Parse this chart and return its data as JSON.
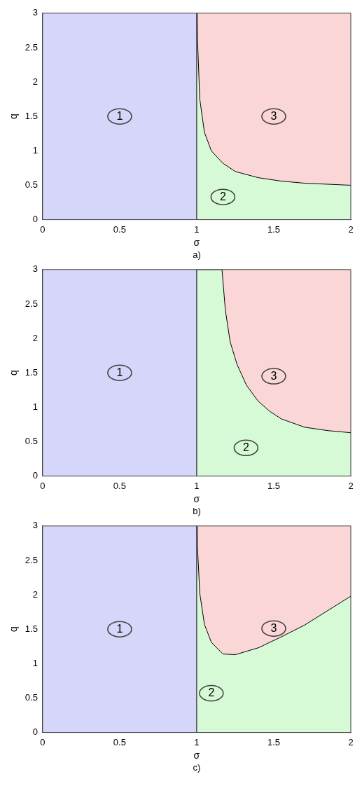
{
  "chart_data": [
    {
      "type": "area",
      "stacked": true,
      "xlabel": "σ",
      "ylabel": "q",
      "xlim": [
        0,
        2
      ],
      "xticks": [
        0,
        0.5,
        1,
        1.5,
        2
      ],
      "ylim": [
        0,
        3
      ],
      "yticks": [
        0,
        0.5,
        1,
        1.5,
        2,
        2.5,
        3
      ],
      "x": [
        1.003,
        1.005,
        1.02,
        1.05,
        1.095,
        1.17,
        1.25,
        1.4,
        1.55,
        1.7,
        2.0
      ],
      "series": [
        {
          "color": "#d6fad6",
          "values": [
            3,
            2.63,
            1.75,
            1.27,
            1.0,
            0.82,
            0.7,
            0.61,
            0.56,
            0.53,
            0.5
          ]
        },
        {
          "color": "#fad6d6",
          "values": [
            0,
            0.37,
            1.25,
            1.73,
            2.0,
            2.18,
            2.3,
            2.39,
            2.44,
            2.47,
            2.5
          ]
        }
      ],
      "bands": [
        {
          "axis": "x",
          "from": 0,
          "to": 1,
          "color": "#d6d6fa"
        }
      ],
      "ref_lines": [
        {
          "axis": "x",
          "value": 1,
          "color": "#000000"
        }
      ],
      "annotations": [
        {
          "text": "1",
          "x": 0.5,
          "y": 1.5
        },
        {
          "text": "2",
          "x": 1.17,
          "y": 0.33
        },
        {
          "text": "3",
          "x": 1.5,
          "y": 1.5
        },
        "a)"
      ]
    },
    {
      "type": "area",
      "stacked": true,
      "xlabel": "σ",
      "ylabel": "q",
      "xlim": [
        0,
        2
      ],
      "xticks": [
        0,
        0.5,
        1,
        1.5,
        2
      ],
      "ylim": [
        0,
        3
      ],
      "yticks": [
        0,
        0.5,
        1,
        1.5,
        2,
        2.5,
        3
      ],
      "x": [
        1.0,
        1.164,
        1.186,
        1.217,
        1.262,
        1.323,
        1.398,
        1.474,
        1.55,
        1.7,
        1.853,
        2.0
      ],
      "series": [
        {
          "color": "#d6fad6",
          "values": [
            3,
            3,
            2.41,
            1.95,
            1.62,
            1.32,
            1.09,
            0.94,
            0.83,
            0.71,
            0.66,
            0.63
          ]
        },
        {
          "color": "#fad6d6",
          "values": [
            0,
            0,
            0.59,
            1.05,
            1.38,
            1.68,
            1.91,
            2.06,
            2.17,
            2.29,
            2.34,
            2.37
          ]
        }
      ],
      "bands": [
        {
          "axis": "x",
          "from": 0,
          "to": 1,
          "color": "#d6d6fa"
        }
      ],
      "ref_lines": [
        {
          "axis": "x",
          "value": 1,
          "color": "#000000"
        }
      ],
      "annotations": [
        {
          "text": "1",
          "x": 0.5,
          "y": 1.5
        },
        {
          "text": "2",
          "x": 1.32,
          "y": 0.41
        },
        {
          "text": "3",
          "x": 1.5,
          "y": 1.45
        },
        "b)"
      ]
    },
    {
      "type": "area",
      "stacked": true,
      "xlabel": "σ",
      "ylabel": "q",
      "xlim": [
        0,
        2
      ],
      "xticks": [
        0,
        0.5,
        1,
        1.5,
        2
      ],
      "ylim": [
        0,
        3
      ],
      "yticks": [
        0,
        0.5,
        1,
        1.5,
        2,
        2.5,
        3
      ],
      "x": [
        1.003,
        1.005,
        1.02,
        1.05,
        1.095,
        1.17,
        1.25,
        1.4,
        1.55,
        1.7,
        1.85,
        2.0
      ],
      "series": [
        {
          "color": "#d6fad6",
          "values": [
            3,
            2.69,
            2.02,
            1.57,
            1.31,
            1.14,
            1.13,
            1.23,
            1.39,
            1.56,
            1.77,
            1.98
          ]
        },
        {
          "color": "#fad6d6",
          "values": [
            0,
            0.31,
            0.98,
            1.43,
            1.69,
            1.86,
            1.87,
            1.77,
            1.61,
            1.44,
            1.23,
            1.02
          ]
        }
      ],
      "bands": [
        {
          "axis": "x",
          "from": 0,
          "to": 1,
          "color": "#d6d6fa"
        }
      ],
      "ref_lines": [
        {
          "axis": "x",
          "value": 1,
          "color": "#000000"
        }
      ],
      "annotations": [
        {
          "text": "1",
          "x": 0.5,
          "y": 1.5
        },
        {
          "text": "2",
          "x": 1.095,
          "y": 0.57
        },
        {
          "text": "3",
          "x": 1.5,
          "y": 1.51
        },
        "c)"
      ]
    }
  ]
}
